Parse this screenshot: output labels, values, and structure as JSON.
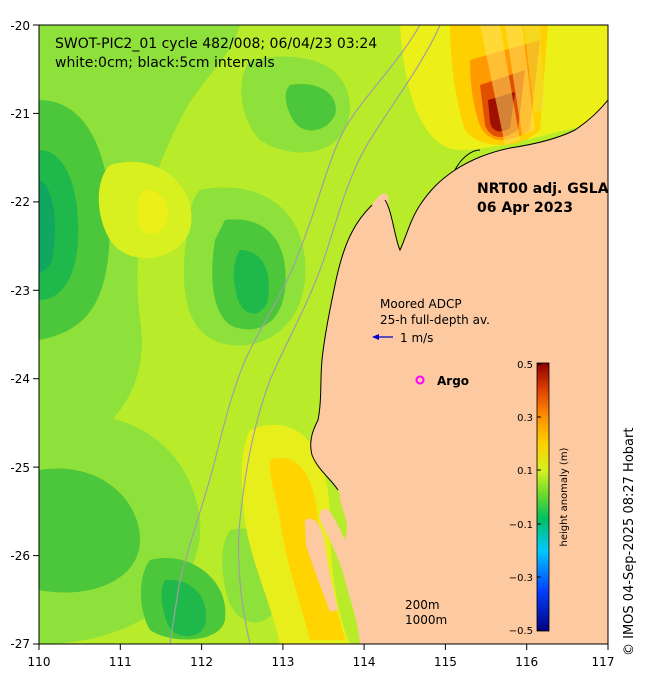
{
  "map": {
    "title_line1": "SWOT-PIC2_01 cycle 482/008; 06/04/23 03:24",
    "title_line2": "white:0cm; black:5cm intervals",
    "product": "NRT00 adj. GSLA",
    "date": "06 Apr 2023",
    "adcp_line1": "Moored ADCP",
    "adcp_line2": "25-h full-depth av.",
    "vector_scale_label": "1 m/s",
    "argo_label": "Argo",
    "contour_200": "200m",
    "contour_1000": "1000m",
    "credit": "© IMOS 04-Sep-2025 08:27 Hobart",
    "lon_ticks": [
      "110",
      "111",
      "112",
      "113",
      "114",
      "115",
      "116",
      "117"
    ],
    "lat_ticks": [
      "-20",
      "-21",
      "-22",
      "-23",
      "-24",
      "-25",
      "-26",
      "-27"
    ],
    "colors": {
      "land": "#fcc9a0",
      "argo_marker": "#ff00ff",
      "vector": "#0000cc",
      "bathymetry": "#a0a0a0"
    }
  },
  "colorbar": {
    "label": "height anomaly (m)",
    "ticks": [
      "0.5",
      "0.3",
      "0.1",
      "−0.1",
      "−0.3",
      "−0.5"
    ]
  }
}
